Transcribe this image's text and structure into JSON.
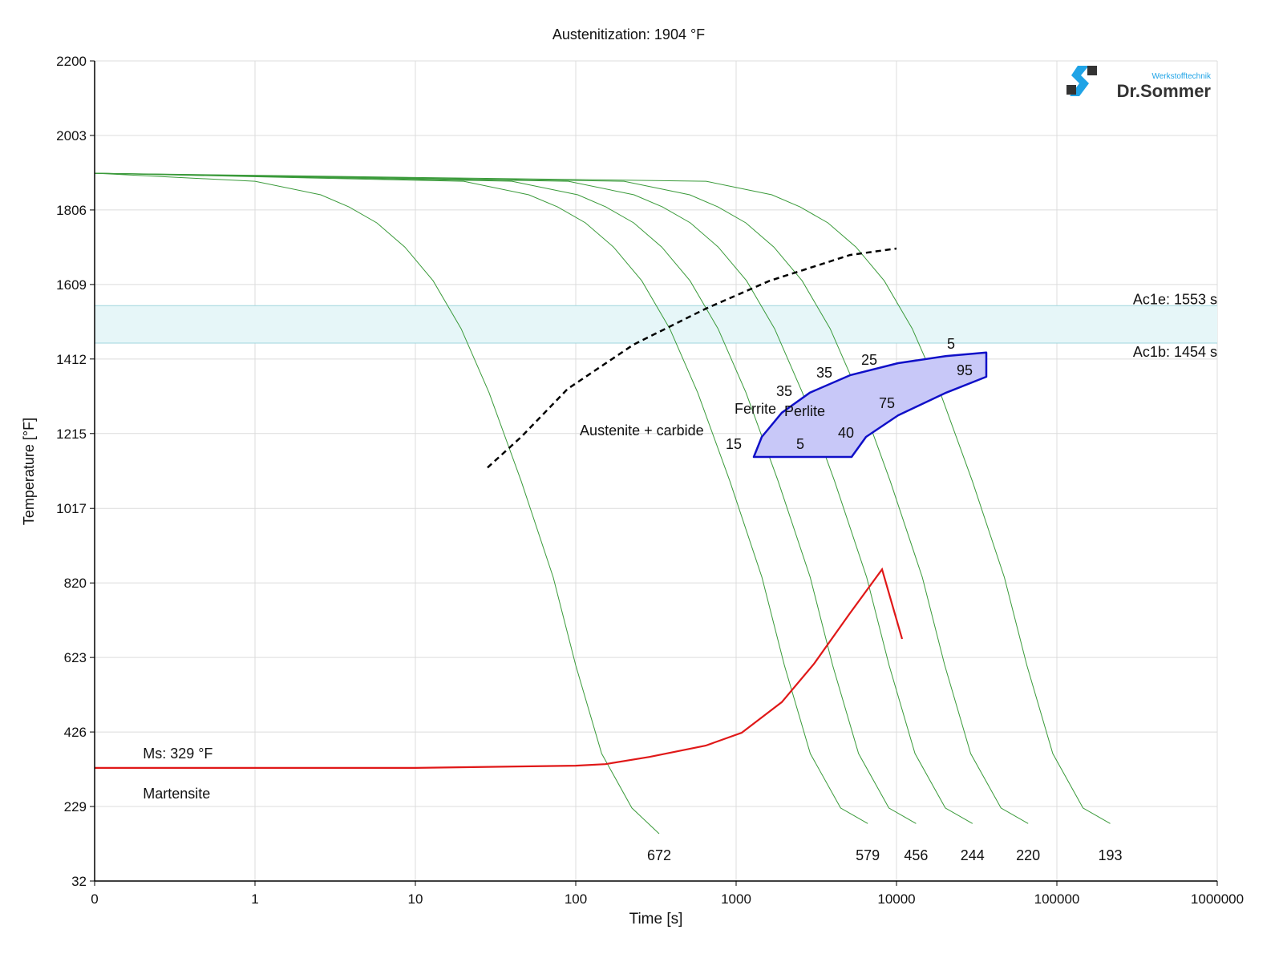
{
  "chart_data": {
    "type": "line",
    "title": "Austenitization: 1904 °F",
    "xlabel": "Time [s]",
    "ylabel": "Temperature [°F]",
    "xscale": "log",
    "xlim": [
      0.1,
      1000000
    ],
    "ylim": [
      32,
      2200
    ],
    "grid": true,
    "x_ticks": [
      {
        "value": 0.1,
        "label": "0"
      },
      {
        "value": 1,
        "label": "1"
      },
      {
        "value": 10,
        "label": "10"
      },
      {
        "value": 100,
        "label": "100"
      },
      {
        "value": 1000,
        "label": "1000"
      },
      {
        "value": 10000,
        "label": "10000"
      },
      {
        "value": 100000,
        "label": "100000"
      },
      {
        "value": 1000000,
        "label": "1000000"
      }
    ],
    "y_ticks": [
      2200,
      2003,
      1806,
      1609,
      1412,
      1215,
      1017,
      820,
      623,
      426,
      229,
      32
    ],
    "colors": {
      "cooling": "#3a9a3a",
      "ms": "#e01818",
      "ac1_band": "#e6f6f8",
      "ac1_line": "#9fd6de",
      "region_fill": "#c8c8f8",
      "region_stroke": "#1010c8",
      "dashed": "#000000",
      "grid": "#dcdcdc"
    },
    "ac1_band": {
      "top": 1553,
      "bottom": 1454,
      "top_label": "Ac1e: 1553 s",
      "bottom_label": "Ac1b: 1454 s"
    },
    "cooling_curves": [
      {
        "hardness": "672",
        "points": [
          [
            0.1,
            1903
          ],
          [
            1,
            1882
          ],
          [
            2.57,
            1846
          ],
          [
            3.85,
            1814
          ],
          [
            5.75,
            1772
          ],
          [
            8.6,
            1708
          ],
          [
            12.9,
            1619
          ],
          [
            19.3,
            1492
          ],
          [
            28.8,
            1323
          ],
          [
            45.7,
            1089
          ],
          [
            72.4,
            835
          ],
          [
            100,
            602
          ],
          [
            145,
            369
          ],
          [
            224,
            225
          ],
          [
            331,
            157
          ]
        ]
      },
      {
        "hardness": "579",
        "points": [
          [
            0.1,
            1903
          ],
          [
            20,
            1882
          ],
          [
            51,
            1846
          ],
          [
            77,
            1814
          ],
          [
            115,
            1772
          ],
          [
            172,
            1708
          ],
          [
            258,
            1619
          ],
          [
            386,
            1492
          ],
          [
            576,
            1323
          ],
          [
            914,
            1089
          ],
          [
            1448,
            835
          ],
          [
            2000,
            602
          ],
          [
            2900,
            369
          ],
          [
            4480,
            225
          ],
          [
            6620,
            184
          ]
        ]
      },
      {
        "hardness": "456",
        "points": [
          [
            0.1,
            1903
          ],
          [
            40,
            1882
          ],
          [
            103,
            1846
          ],
          [
            154,
            1814
          ],
          [
            230,
            1772
          ],
          [
            344,
            1708
          ],
          [
            516,
            1619
          ],
          [
            772,
            1492
          ],
          [
            1152,
            1323
          ],
          [
            1828,
            1089
          ],
          [
            2896,
            835
          ],
          [
            4000,
            602
          ],
          [
            5800,
            369
          ],
          [
            8960,
            225
          ],
          [
            13240,
            184
          ]
        ]
      },
      {
        "hardness": "244",
        "points": [
          [
            0.1,
            1903
          ],
          [
            90,
            1882
          ],
          [
            231,
            1846
          ],
          [
            347,
            1814
          ],
          [
            518,
            1772
          ],
          [
            774,
            1708
          ],
          [
            1161,
            1619
          ],
          [
            1737,
            1492
          ],
          [
            2592,
            1323
          ],
          [
            4113,
            1089
          ],
          [
            6516,
            835
          ],
          [
            9000,
            602
          ],
          [
            13050,
            369
          ],
          [
            20160,
            225
          ],
          [
            29790,
            184
          ]
        ]
      },
      {
        "hardness": "220",
        "points": [
          [
            0.1,
            1903
          ],
          [
            200,
            1882
          ],
          [
            514,
            1846
          ],
          [
            770,
            1814
          ],
          [
            1150,
            1772
          ],
          [
            1720,
            1708
          ],
          [
            2580,
            1619
          ],
          [
            3860,
            1492
          ],
          [
            5760,
            1323
          ],
          [
            9140,
            1089
          ],
          [
            14480,
            835
          ],
          [
            20000,
            602
          ],
          [
            29000,
            369
          ],
          [
            44800,
            225
          ],
          [
            66200,
            184
          ]
        ]
      },
      {
        "hardness": "193",
        "points": [
          [
            0.1,
            1903
          ],
          [
            650,
            1882
          ],
          [
            1671,
            1846
          ],
          [
            2503,
            1814
          ],
          [
            3738,
            1772
          ],
          [
            5590,
            1708
          ],
          [
            8385,
            1619
          ],
          [
            12545,
            1492
          ],
          [
            18720,
            1323
          ],
          [
            29705,
            1089
          ],
          [
            47060,
            835
          ],
          [
            65000,
            602
          ],
          [
            94250,
            369
          ],
          [
            145600,
            225
          ],
          [
            215150,
            184
          ]
        ]
      }
    ],
    "ms_line": {
      "label": "Ms: 329 °F",
      "points": [
        [
          0.1,
          331
        ],
        [
          10,
          331
        ],
        [
          100,
          337
        ],
        [
          153,
          341
        ],
        [
          288,
          360
        ],
        [
          646,
          390
        ],
        [
          1084,
          424
        ],
        [
          1928,
          505
        ],
        [
          3055,
          606
        ],
        [
          5128,
          740
        ],
        [
          8128,
          856
        ],
        [
          10840,
          672
        ]
      ]
    },
    "carbide_line": {
      "points": [
        [
          28.2,
          1125
        ],
        [
          45.7,
          1206
        ],
        [
          89,
          1333
        ],
        [
          229,
          1450
        ],
        [
          646,
          1545
        ],
        [
          1622,
          1619
        ],
        [
          5128,
          1687
        ],
        [
          10000,
          1704
        ]
      ]
    },
    "ferrite_perlite_region": {
      "points": [
        [
          1288,
          1153
        ],
        [
          1445,
          1206
        ],
        [
          1928,
          1270
        ],
        [
          2884,
          1323
        ],
        [
          5128,
          1369
        ],
        [
          10230,
          1401
        ],
        [
          20420,
          1420
        ],
        [
          36300,
          1429
        ],
        [
          36300,
          1365
        ],
        [
          20420,
          1323
        ],
        [
          10230,
          1263
        ],
        [
          6457,
          1206
        ],
        [
          5248,
          1153
        ]
      ]
    },
    "annotations": [
      {
        "text": "Austenite + carbide",
        "t": 106,
        "T": 1223,
        "anchor": "start"
      },
      {
        "text": "Ferrite",
        "t": 977,
        "T": 1280,
        "anchor": "start"
      },
      {
        "text": "Perlite",
        "t": 1995,
        "T": 1274,
        "anchor": "start"
      },
      {
        "text": "15",
        "t": 966,
        "T": 1187,
        "anchor": "middle"
      },
      {
        "text": "5",
        "t": 2512,
        "T": 1187,
        "anchor": "middle"
      },
      {
        "text": "35",
        "t": 1995,
        "T": 1323,
        "anchor": "middle"
      },
      {
        "text": "35",
        "t": 3548,
        "T": 1376,
        "anchor": "middle"
      },
      {
        "text": "25",
        "t": 6761,
        "T": 1410,
        "anchor": "middle"
      },
      {
        "text": "40",
        "t": 4842,
        "T": 1217,
        "anchor": "middle"
      },
      {
        "text": "75",
        "t": 8710,
        "T": 1295,
        "anchor": "middle"
      },
      {
        "text": "5",
        "t": 21880,
        "T": 1452,
        "anchor": "middle"
      },
      {
        "text": "95",
        "t": 26600,
        "T": 1382,
        "anchor": "middle"
      },
      {
        "text": "Martensite",
        "t": 0.2,
        "T": 263,
        "anchor": "start"
      }
    ],
    "ms_label_pos": {
      "t": 0.2,
      "T": 356
    }
  },
  "logo": {
    "brand": "Dr.Sommer",
    "tagline": "Werkstofftechnik"
  }
}
